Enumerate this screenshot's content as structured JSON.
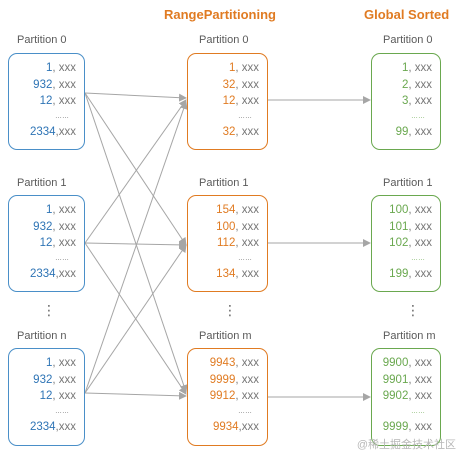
{
  "header": {
    "middle_title": "RangePartitioning",
    "right_title": "Global Sorted"
  },
  "left": {
    "labels": [
      "Partition 0",
      "Partition 1",
      "Partition n"
    ],
    "boxes": [
      {
        "rows": [
          {
            "n": "1",
            "s": ", xxx"
          },
          {
            "n": "932",
            "s": ", xxx"
          },
          {
            "n": "12",
            "s": ", xxx"
          },
          {
            "ell": "……"
          },
          {
            "n": "2334",
            "s": ",xxx"
          }
        ]
      },
      {
        "rows": [
          {
            "n": "1",
            "s": ", xxx"
          },
          {
            "n": "932",
            "s": ", xxx"
          },
          {
            "n": "12",
            "s": ", xxx"
          },
          {
            "ell": "……"
          },
          {
            "n": "2334",
            "s": ",xxx"
          }
        ]
      },
      {
        "rows": [
          {
            "n": "1",
            "s": ", xxx"
          },
          {
            "n": "932",
            "s": ", xxx"
          },
          {
            "n": "12",
            "s": ", xxx"
          },
          {
            "ell": "……"
          },
          {
            "n": "2334",
            "s": ",xxx"
          }
        ]
      }
    ]
  },
  "middle": {
    "labels": [
      "Partition 0",
      "Partition 1",
      "Partition m"
    ],
    "boxes": [
      {
        "rows": [
          {
            "n": "1",
            "s": ", xxx"
          },
          {
            "n": "32",
            "s": ", xxx"
          },
          {
            "n": "12",
            "s": ", xxx"
          },
          {
            "ell": "……"
          },
          {
            "n": "32",
            "s": ", xxx"
          }
        ]
      },
      {
        "rows": [
          {
            "n": "154",
            "s": ", xxx"
          },
          {
            "n": "100",
            "s": ", xxx"
          },
          {
            "n": "112",
            "s": ", xxx"
          },
          {
            "ell": "……"
          },
          {
            "n": "134",
            "s": ", xxx"
          }
        ]
      },
      {
        "rows": [
          {
            "n": "9943",
            "s": ", xxx"
          },
          {
            "n": "9999",
            "s": ", xxx"
          },
          {
            "n": "9912",
            "s": ", xxx"
          },
          {
            "ell": "……"
          },
          {
            "n": "9934",
            "s": ",xxx"
          }
        ]
      }
    ]
  },
  "right": {
    "labels": [
      "Partition 0",
      "Partition 1",
      "Partition m"
    ],
    "boxes": [
      {
        "rows": [
          {
            "n": "1",
            "s": ", xxx"
          },
          {
            "n": "2",
            "s": ", xxx"
          },
          {
            "n": "3",
            "s": ", xxx"
          },
          {
            "ell": "……"
          },
          {
            "n": "99",
            "s": ", xxx"
          }
        ]
      },
      {
        "rows": [
          {
            "n": "100",
            "s": ", xxx"
          },
          {
            "n": "101",
            "s": ", xxx"
          },
          {
            "n": "102",
            "s": ", xxx"
          },
          {
            "ell": "……"
          },
          {
            "n": "199",
            "s": ", xxx"
          }
        ]
      },
      {
        "rows": [
          {
            "n": "9900",
            "s": ", xxx"
          },
          {
            "n": "9901",
            "s": ", xxx"
          },
          {
            "n": "9902",
            "s": ", xxx"
          },
          {
            "ell": "……"
          },
          {
            "n": "9999",
            "s": ", xxx"
          }
        ]
      }
    ]
  },
  "vertical_ellipsis": "⋮",
  "watermark": "@稀土掘金技术社区",
  "colors": {
    "left_border": "#4a8fc8",
    "middle_border": "#e07b22",
    "right_border": "#6aa84f",
    "title": "#e07b22",
    "arrows": "#a6a6a6"
  }
}
